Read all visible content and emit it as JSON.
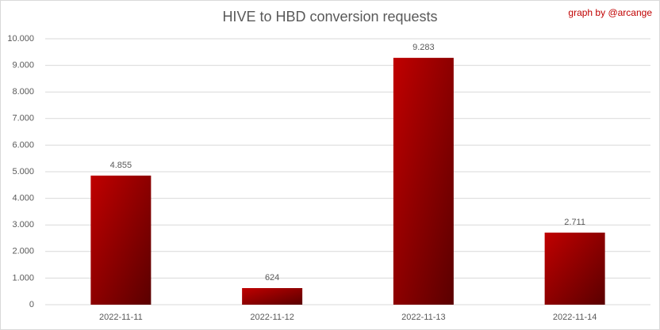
{
  "chart_data": {
    "type": "bar",
    "title": "HIVE to HBD conversion requests",
    "annotation": "graph by @arcange",
    "categories": [
      "2022-11-11",
      "2022-11-12",
      "2022-11-13",
      "2022-11-14"
    ],
    "values": [
      4855,
      624,
      9283,
      2711
    ],
    "value_labels": [
      "4.855",
      "624",
      "9.283",
      "2.711"
    ],
    "color": "#c00000",
    "ylim": [
      0,
      10000
    ],
    "yticks": [
      0,
      {
        "value": 1000,
        "label": "1.000"
      },
      {
        "value": 2000,
        "label": "2.000"
      },
      {
        "value": 3000,
        "label": "3.000"
      },
      {
        "value": 4000,
        "label": "4.000"
      },
      {
        "value": 5000,
        "label": "5.000"
      },
      {
        "value": 6000,
        "label": "6.000"
      },
      {
        "value": 7000,
        "label": "7.000"
      },
      {
        "value": 8000,
        "label": "8.000"
      },
      {
        "value": 9000,
        "label": "9.000"
      },
      {
        "value": 10000,
        "label": "10.000"
      }
    ],
    "grid": true
  }
}
